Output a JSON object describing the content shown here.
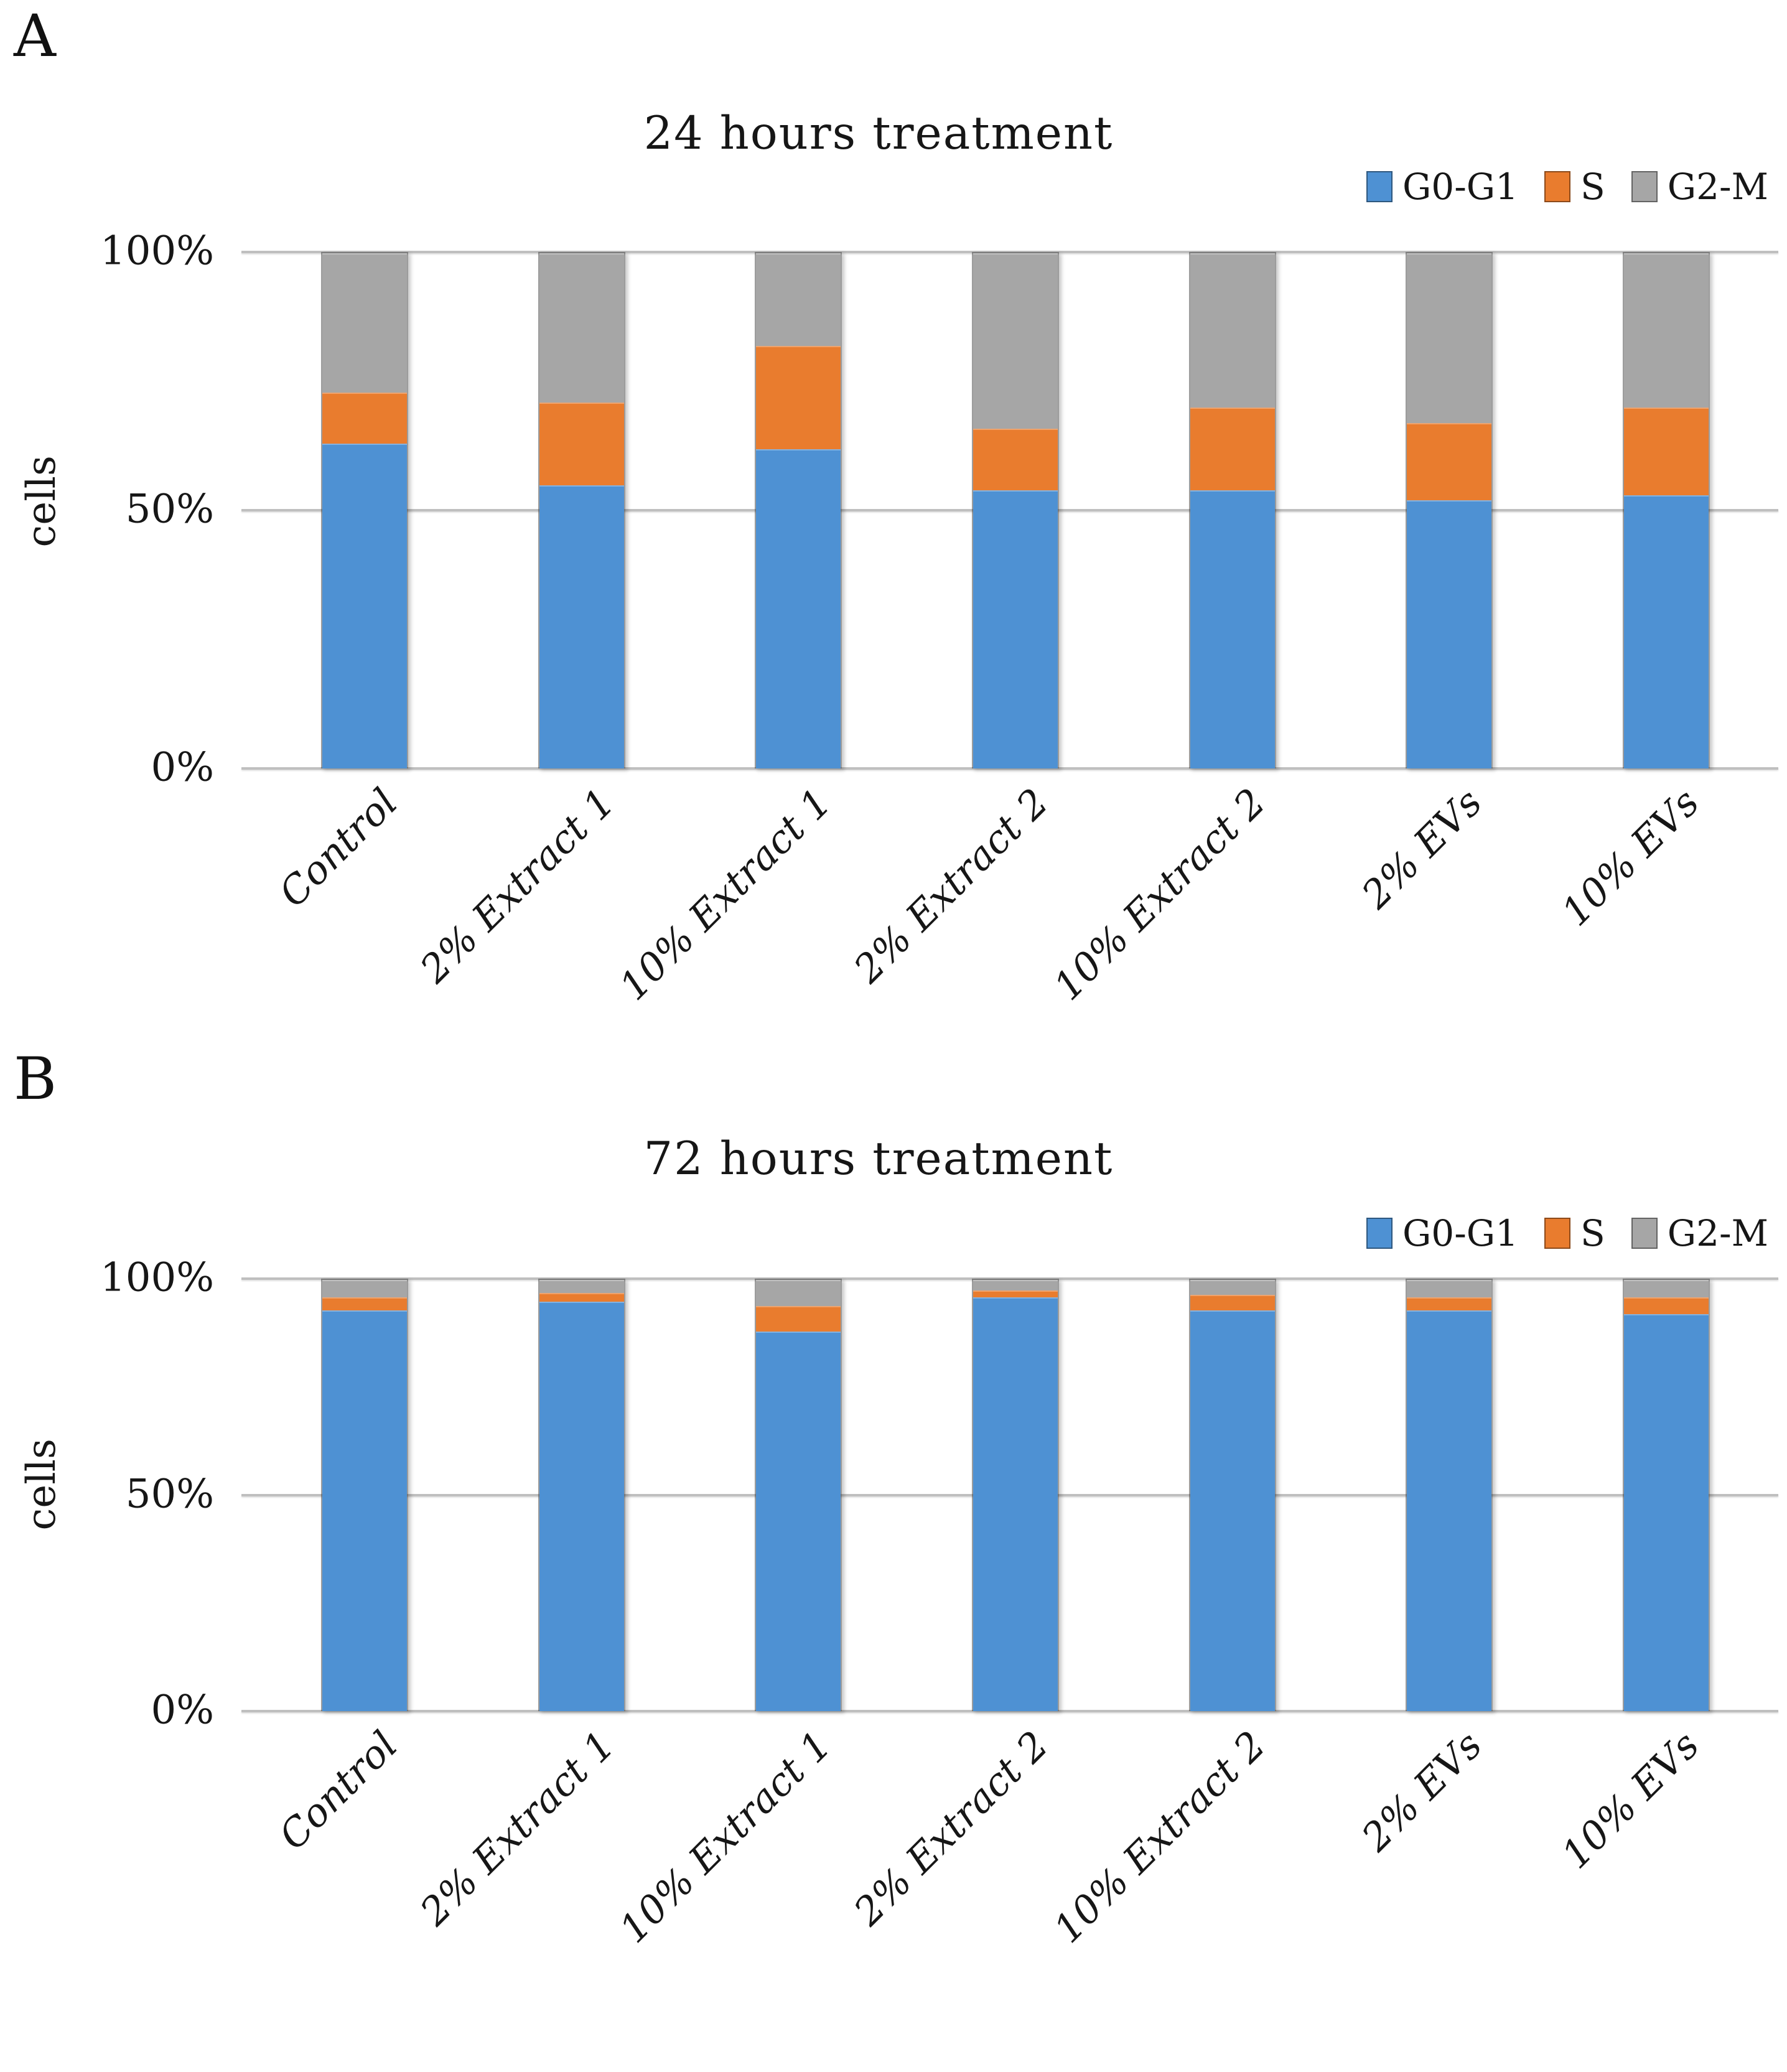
{
  "panels": [
    {
      "label": "A"
    },
    {
      "label": "B"
    }
  ],
  "colors": {
    "g0_g1": "#4E91D3",
    "s": "#E97C2E",
    "g2_m": "#A6A6A6",
    "gridline": "#BFBFBF",
    "text": "#161616"
  },
  "chart_data": [
    {
      "type": "bar",
      "stacked": true,
      "panel": "A",
      "title": "24 hours treatment",
      "xlabel": "",
      "ylabel": "cells",
      "ylim": [
        0,
        100
      ],
      "yticks": [
        100,
        50,
        0
      ],
      "ytick_format": "percent",
      "grid": true,
      "legend_position": "top-right",
      "categories": [
        "Control",
        "2% Extract 1",
        "10% Extract 1",
        "2% Extract 2",
        "10% Extract 2",
        "2% EVs",
        "10% EVs"
      ],
      "series": [
        {
          "name": "G0-G1",
          "color": "#4E91D3",
          "values": [
            63,
            55,
            62,
            54,
            54,
            52,
            53
          ]
        },
        {
          "name": "S",
          "color": "#E97C2E",
          "values": [
            10,
            16,
            20,
            12,
            16,
            15,
            17
          ]
        },
        {
          "name": "G2-M",
          "color": "#A6A6A6",
          "values": [
            27,
            29,
            18,
            34,
            30,
            33,
            30
          ]
        }
      ]
    },
    {
      "type": "bar",
      "stacked": true,
      "panel": "B",
      "title": "72 hours treatment",
      "xlabel": "",
      "ylabel": "cells",
      "ylim": [
        0,
        100
      ],
      "yticks": [
        100,
        50,
        0
      ],
      "ytick_format": "percent",
      "grid": true,
      "legend_position": "top-right",
      "categories": [
        "Control",
        "2% Extract 1",
        "10% Extract 1",
        "2% Extract 2",
        "10% Extract 2",
        "2% EVs",
        "10% EVs"
      ],
      "series": [
        {
          "name": "G0-G1",
          "color": "#4E91D3",
          "values": [
            93,
            95,
            88,
            96,
            93,
            93,
            92
          ]
        },
        {
          "name": "S",
          "color": "#E97C2E",
          "values": [
            3,
            2,
            6,
            1.5,
            3.5,
            3,
            4
          ]
        },
        {
          "name": "G2-M",
          "color": "#A6A6A6",
          "values": [
            4,
            3,
            6,
            2.5,
            3.5,
            4,
            4
          ]
        }
      ]
    }
  ]
}
